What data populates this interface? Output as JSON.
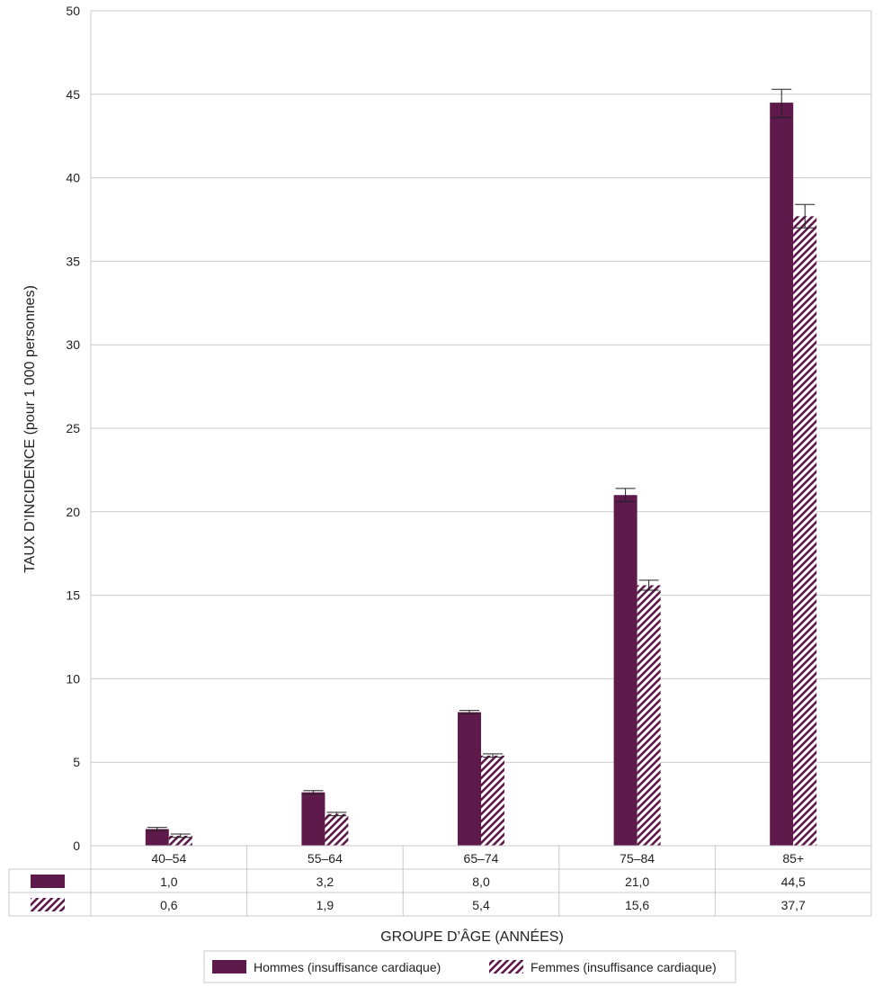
{
  "chart_data": {
    "type": "bar",
    "title": "",
    "xlabel": "GROUPE D’ÂGE (ANNÉES)",
    "ylabel": "TAUX D’INCIDENCE  (pour 1 000 personnes)",
    "ylim": [
      0,
      50
    ],
    "yticks": [
      0,
      5,
      10,
      15,
      20,
      25,
      30,
      35,
      40,
      45,
      50
    ],
    "grid": true,
    "categories": [
      "40–54",
      "55–64",
      "65–74",
      "75–84",
      "85+"
    ],
    "series": [
      {
        "name": "Hommes (insuffisance cardiaque)",
        "pattern": "solid",
        "color": "#5E1A4B",
        "values": [
          1.0,
          3.2,
          8.0,
          21.0,
          44.5
        ],
        "value_labels": [
          "1,0",
          "3,2",
          "8,0",
          "21,0",
          "44,5"
        ],
        "error_low": [
          0.9,
          3.1,
          7.9,
          20.6,
          43.6
        ],
        "error_high": [
          1.1,
          3.3,
          8.1,
          21.4,
          45.3
        ]
      },
      {
        "name": "Femmes (insuffisance cardiaque)",
        "pattern": "hatched",
        "color": "#5E1A4B",
        "values": [
          0.6,
          1.9,
          5.4,
          15.6,
          37.7
        ],
        "value_labels": [
          "0,6",
          "1,9",
          "5,4",
          "15,6",
          "37,7"
        ],
        "error_low": [
          0.5,
          1.8,
          5.3,
          15.3,
          37.0
        ],
        "error_high": [
          0.7,
          2.0,
          5.5,
          15.9,
          38.4
        ]
      }
    ],
    "legend_position": "bottom-center"
  }
}
